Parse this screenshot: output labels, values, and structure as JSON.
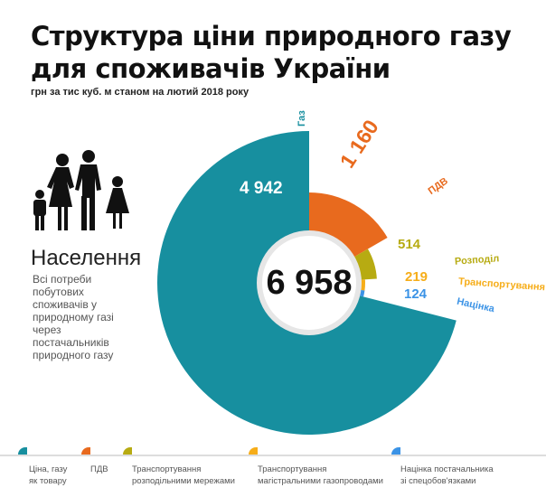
{
  "title_line1": "Структура ціни природного газу",
  "title_line2": "для споживачів України",
  "subtitle": "грн за тис куб. м станом на лютий 2018 року",
  "group": {
    "title": "Населення",
    "description": "Всі потреби побутових споживачів у природному газі через постачальників природного газу",
    "icon": "family-silhouette-icon"
  },
  "chart_data": {
    "type": "radial-bar",
    "total": "6 958",
    "series": [
      {
        "name": "Газ",
        "value": 4942,
        "value_label": "4 942",
        "color": "#178f9f"
      },
      {
        "name": "ПДВ",
        "value": 1160,
        "value_label": "1 160",
        "color": "#e86a1e"
      },
      {
        "name": "Розподіл",
        "value": 514,
        "value_label": "514",
        "color": "#b7ab12"
      },
      {
        "name": "Транспортування",
        "value": 219,
        "value_label": "219",
        "color": "#f6ad19"
      },
      {
        "name": "Націнка",
        "value": 124,
        "value_label": "124",
        "color": "#3b93e6"
      }
    ]
  },
  "legend": [
    {
      "label1": "Ціна, газу",
      "label2": "як товару",
      "color": "#178f9f"
    },
    {
      "label1": "ПДВ",
      "label2": "",
      "color": "#e86a1e"
    },
    {
      "label1": "Транспортування",
      "label2": "розподільними мережами",
      "color": "#b7ab12"
    },
    {
      "label1": "Транспортування",
      "label2": "магістральними газопроводами",
      "color": "#f6ad19"
    },
    {
      "label1": "Націнка постачальника",
      "label2": "зі спецобов'язками",
      "color": "#3b93e6"
    }
  ]
}
